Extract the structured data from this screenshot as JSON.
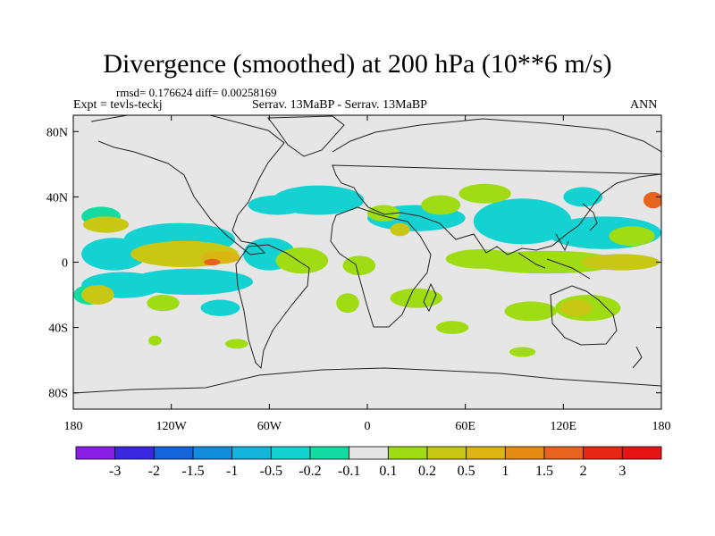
{
  "chart_data": {
    "type": "heatmap",
    "title": "Divergence (smoothed) at 200 hPa (10**6 m/s)",
    "stats_line": "rmsd= 0.176624 diff= 0.00258169",
    "left_label": "Expt = tevls-teckj",
    "center_label": "Serrav.   13MaBP - Serrav.   13MaBP",
    "right_label": "ANN",
    "xlim": [
      -180,
      180
    ],
    "ylim": [
      -90,
      90
    ],
    "x_ticks": [
      {
        "value": -180,
        "label": "180"
      },
      {
        "value": -120,
        "label": "120W"
      },
      {
        "value": -60,
        "label": "60W"
      },
      {
        "value": 0,
        "label": "0"
      },
      {
        "value": 60,
        "label": "60E"
      },
      {
        "value": 120,
        "label": "120E"
      },
      {
        "value": 180,
        "label": "180"
      }
    ],
    "y_ticks": [
      {
        "value": 80,
        "label": "80N"
      },
      {
        "value": 40,
        "label": "40N"
      },
      {
        "value": 0,
        "label": "0"
      },
      {
        "value": -40,
        "label": "40S"
      },
      {
        "value": -80,
        "label": "80S"
      }
    ],
    "colorbar": {
      "levels": [
        "-3",
        "-2",
        "-1.5",
        "-1",
        "-0.5",
        "-0.2",
        "-0.1",
        "0.1",
        "0.2",
        "0.5",
        "1",
        "1.5",
        "2",
        "3"
      ],
      "colors": [
        "#8a1ee6",
        "#3a28e0",
        "#1464dc",
        "#148cdc",
        "#14b4dc",
        "#14d2d2",
        "#14dca0",
        "#e6e6e6",
        "#a0dc14",
        "#c8c814",
        "#dcb414",
        "#e68c14",
        "#e6641e",
        "#e62814",
        "#e61414"
      ]
    },
    "regions": [
      {
        "lon": -155,
        "lat": 5,
        "rx": 20,
        "ry": 10,
        "level": 5
      },
      {
        "lon": -115,
        "lat": 14,
        "rx": 34,
        "ry": 10,
        "level": 5
      },
      {
        "lon": -150,
        "lat": -14,
        "rx": 25,
        "ry": 8,
        "level": 5
      },
      {
        "lon": -108,
        "lat": -12,
        "rx": 38,
        "ry": 8,
        "level": 5
      },
      {
        "lon": -60,
        "lat": 5,
        "rx": 16,
        "ry": 10,
        "level": 5
      },
      {
        "lon": -30,
        "lat": 38,
        "rx": 28,
        "ry": 9,
        "level": 5
      },
      {
        "lon": -55,
        "lat": 35,
        "rx": 18,
        "ry": 6,
        "level": 5
      },
      {
        "lon": 30,
        "lat": 27,
        "rx": 30,
        "ry": 8,
        "level": 5
      },
      {
        "lon": 95,
        "lat": 25,
        "rx": 30,
        "ry": 14,
        "level": 5
      },
      {
        "lon": 145,
        "lat": 18,
        "rx": 35,
        "ry": 10,
        "level": 5
      },
      {
        "lon": 132,
        "lat": 40,
        "rx": 12,
        "ry": 6,
        "level": 5
      },
      {
        "lon": -90,
        "lat": -28,
        "rx": 12,
        "ry": 5,
        "level": 5
      },
      {
        "lon": -163,
        "lat": 28,
        "rx": 12,
        "ry": 6,
        "level": 6
      },
      {
        "lon": -170,
        "lat": -20,
        "rx": 10,
        "ry": 6,
        "level": 6
      },
      {
        "lon": -160,
        "lat": 23,
        "rx": 14,
        "ry": 5,
        "level": 9
      },
      {
        "lon": -165,
        "lat": -20,
        "rx": 10,
        "ry": 6,
        "level": 9
      },
      {
        "lon": -112,
        "lat": 5,
        "rx": 33,
        "ry": 8,
        "level": 9
      },
      {
        "lon": -90,
        "lat": 3,
        "rx": 12,
        "ry": 4,
        "level": 10
      },
      {
        "lon": -95,
        "lat": 0,
        "rx": 5,
        "ry": 2,
        "level": 12
      },
      {
        "lon": -125,
        "lat": -25,
        "rx": 10,
        "ry": 5,
        "level": 8
      },
      {
        "lon": -40,
        "lat": 1,
        "rx": 16,
        "ry": 8,
        "level": 8
      },
      {
        "lon": -5,
        "lat": -2,
        "rx": 10,
        "ry": 6,
        "level": 8
      },
      {
        "lon": -12,
        "lat": -25,
        "rx": 7,
        "ry": 6,
        "level": 8
      },
      {
        "lon": 10,
        "lat": 30,
        "rx": 10,
        "ry": 5,
        "level": 8
      },
      {
        "lon": 45,
        "lat": 35,
        "rx": 12,
        "ry": 6,
        "level": 8
      },
      {
        "lon": 30,
        "lat": -22,
        "rx": 16,
        "ry": 6,
        "level": 8
      },
      {
        "lon": 52,
        "lat": -40,
        "rx": 10,
        "ry": 4,
        "level": 8
      },
      {
        "lon": 72,
        "lat": 42,
        "rx": 16,
        "ry": 6,
        "level": 8
      },
      {
        "lon": 70,
        "lat": 2,
        "rx": 22,
        "ry": 6,
        "level": 8
      },
      {
        "lon": 110,
        "lat": 0,
        "rx": 45,
        "ry": 7,
        "level": 8
      },
      {
        "lon": 162,
        "lat": 16,
        "rx": 14,
        "ry": 6,
        "level": 8
      },
      {
        "lon": 100,
        "lat": -30,
        "rx": 16,
        "ry": 6,
        "level": 8
      },
      {
        "lon": 135,
        "lat": -28,
        "rx": 20,
        "ry": 8,
        "level": 8
      },
      {
        "lon": -80,
        "lat": -50,
        "rx": 7,
        "ry": 3,
        "level": 8
      },
      {
        "lon": -130,
        "lat": -48,
        "rx": 4,
        "ry": 3,
        "level": 8
      },
      {
        "lon": 95,
        "lat": -55,
        "rx": 8,
        "ry": 3,
        "level": 8
      },
      {
        "lon": 20,
        "lat": 20,
        "rx": 6,
        "ry": 4,
        "level": 9
      },
      {
        "lon": 155,
        "lat": 0,
        "rx": 24,
        "ry": 5,
        "level": 9
      },
      {
        "lon": 128,
        "lat": -28,
        "rx": 10,
        "ry": 5,
        "level": 9
      },
      {
        "lon": 175,
        "lat": 38,
        "rx": 6,
        "ry": 5,
        "level": 12
      }
    ]
  }
}
